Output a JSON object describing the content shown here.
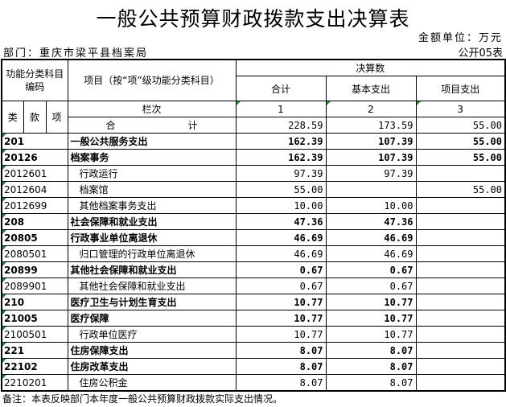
{
  "title": "一般公共预算财政拨款支出决算表",
  "unit": "金额单位：万元",
  "department": "部门：重庆市梁平县档案局",
  "form_no": "公开05表",
  "header": {
    "code": "功能分类科目编码",
    "item": "项目（按“项”级功能分类科目）",
    "final": "决算数",
    "total": "合计",
    "basic": "基本支出",
    "project": "项目支出",
    "lei": "类",
    "kuan": "款",
    "xiang": "项",
    "column_label": "栏次",
    "col1": "1",
    "col2": "2",
    "col3": "3"
  },
  "total_row": {
    "label_a": "合",
    "label_b": "计",
    "total": "228.59",
    "basic": "173.59",
    "project": "55.00"
  },
  "rows": [
    {
      "code": "201",
      "name": "一般公共服务支出",
      "total": "162.39",
      "basic": "107.39",
      "project": "55.00",
      "bold": true
    },
    {
      "code": "20126",
      "name": "档案事务",
      "total": "162.39",
      "basic": "107.39",
      "project": "55.00",
      "bold": true
    },
    {
      "code": "2012601",
      "name": "行政运行",
      "total": "97.39",
      "basic": "97.39",
      "project": ""
    },
    {
      "code": "2012604",
      "name": "档案馆",
      "total": "55.00",
      "basic": "",
      "project": "55.00"
    },
    {
      "code": "2012699",
      "name": "其他档案事务支出",
      "total": "10.00",
      "basic": "10.00",
      "project": ""
    },
    {
      "code": "208",
      "name": "社会保障和就业支出",
      "total": "47.36",
      "basic": "47.36",
      "project": "",
      "bold": true
    },
    {
      "code": "20805",
      "name": "行政事业单位离退休",
      "total": "46.69",
      "basic": "46.69",
      "project": "",
      "bold": true
    },
    {
      "code": "2080501",
      "name": "归口管理的行政单位离退休",
      "total": "46.69",
      "basic": "46.69",
      "project": ""
    },
    {
      "code": "20899",
      "name": "其他社会保障和就业支出",
      "total": "0.67",
      "basic": "0.67",
      "project": "",
      "bold": true
    },
    {
      "code": "2089901",
      "name": "其他社会保障和就业支出",
      "total": "0.67",
      "basic": "0.67",
      "project": ""
    },
    {
      "code": "210",
      "name": "医疗卫生与计划生育支出",
      "total": "10.77",
      "basic": "10.77",
      "project": "",
      "bold": true
    },
    {
      "code": "21005",
      "name": "医疗保障",
      "total": "10.77",
      "basic": "10.77",
      "project": "",
      "bold": true
    },
    {
      "code": "2100501",
      "name": "行政单位医疗",
      "total": "10.77",
      "basic": "10.77",
      "project": ""
    },
    {
      "code": "221",
      "name": "住房保障支出",
      "total": "8.07",
      "basic": "8.07",
      "project": "",
      "bold": true
    },
    {
      "code": "22102",
      "name": "住房改革支出",
      "total": "8.07",
      "basic": "8.07",
      "project": "",
      "bold": true
    },
    {
      "code": "2210201",
      "name": "住房公积金",
      "total": "8.07",
      "basic": "8.07",
      "project": ""
    }
  ],
  "note": "备注：本表反映部门本年度一般公共预算财政拨款实际支出情况。",
  "colors": {
    "cell_marker": "#1f8a3a"
  }
}
